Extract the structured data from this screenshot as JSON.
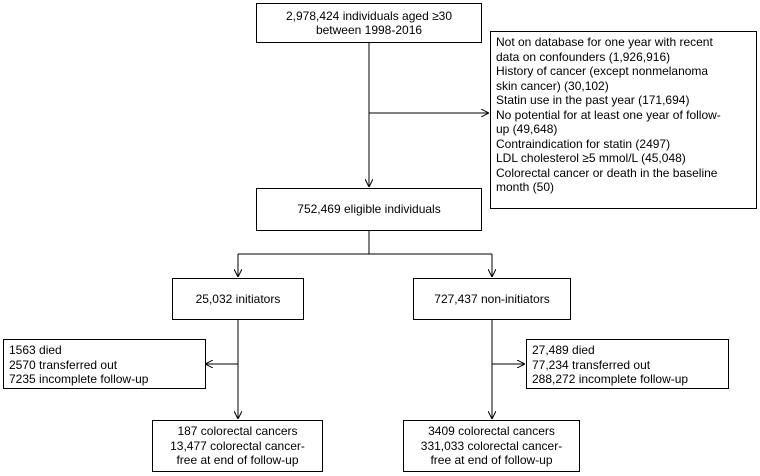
{
  "population": {
    "lines": [
      "2,978,424 individuals aged ≥30",
      "between 1998-2016"
    ]
  },
  "exclusions": {
    "lines": [
      "Not on database for one year with recent",
      "data on confounders (1,926,916)",
      "History of cancer (except nonmelanoma",
      "skin cancer) (30,102)",
      "Statin use in the past year (171,694)",
      "No potential for at least one year of follow-",
      "up (49,648)",
      "Contraindication for statin (2497)",
      "LDL cholesterol ≥5 mmol/L (45,048)",
      "Colorectal cancer or death in the baseline",
      "month (50)"
    ]
  },
  "eligible": {
    "text": "752,469 eligible individuals"
  },
  "initiators": {
    "text": "25,032 initiators"
  },
  "non_initiators": {
    "text": "727,437 non-initiators"
  },
  "initiators_censored": {
    "lines": [
      "1563 died",
      "2570 transferred out",
      "7235 incomplete follow-up"
    ]
  },
  "non_initiators_censored": {
    "lines": [
      "27,489 died",
      "77,234 transferred out",
      "288,272 incomplete follow-up"
    ]
  },
  "initiators_outcome": {
    "lines": [
      "187 colorectal cancers",
      "13,477 colorectal cancer-",
      "free at end of follow-up"
    ]
  },
  "non_initiators_outcome": {
    "lines": [
      "3409 colorectal cancers",
      "331,033 colorectal cancer-",
      "free at end of follow-up"
    ]
  }
}
